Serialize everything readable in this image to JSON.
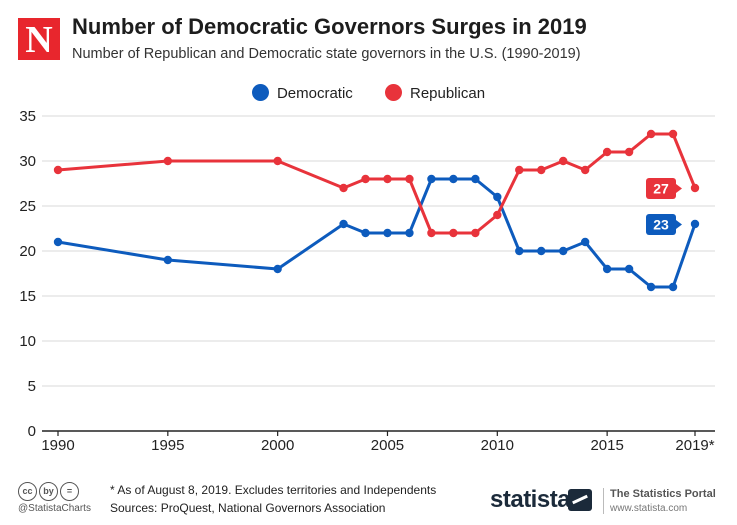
{
  "header": {
    "logo_letter": "N",
    "title": "Number of Democratic Governors Surges in 2019",
    "subtitle": "Number of Republican and Democratic state governors in the U.S. (1990-2019)"
  },
  "footer": {
    "note": "* As of August 8, 2019. Excludes territories and Independents",
    "sources": "Sources: ProQuest, National Governors Association",
    "license_icons": [
      "cc",
      "by",
      "="
    ],
    "handle": "@StatistaCharts",
    "brand": "statista",
    "portal": "The Statistics Portal",
    "portal_url": "www.statista.com"
  },
  "chart_data": {
    "type": "line",
    "title": "Number of Democratic Governors Surges in 2019",
    "xlabel": "",
    "ylabel": "",
    "xlim": [
      1990,
      2019
    ],
    "ylim": [
      0,
      35
    ],
    "yticks": [
      0,
      5,
      10,
      15,
      20,
      25,
      30,
      35
    ],
    "xticks": [
      1990,
      1995,
      2000,
      2005,
      2010,
      2015
    ],
    "xtick_labels": [
      "1990",
      "1995",
      "2000",
      "2005",
      "2010",
      "2015"
    ],
    "last_tick_label": "2019*",
    "grid": "horizontal",
    "legend": "top-center",
    "x": [
      1990,
      1995,
      2000,
      2003,
      2004,
      2005,
      2006,
      2007,
      2008,
      2009,
      2010,
      2011,
      2012,
      2013,
      2014,
      2015,
      2016,
      2017,
      2018,
      2019
    ],
    "series": [
      {
        "name": "Democratic",
        "color": "#0d5bbd",
        "values": [
          21,
          19,
          18,
          23,
          22,
          22,
          22,
          28,
          28,
          28,
          26,
          20,
          20,
          20,
          21,
          18,
          18,
          16,
          16,
          23
        ],
        "end_label": "23"
      },
      {
        "name": "Republican",
        "color": "#e8333b",
        "values": [
          29,
          30,
          30,
          27,
          28,
          28,
          28,
          22,
          22,
          22,
          24,
          29,
          29,
          30,
          29,
          31,
          31,
          33,
          33,
          27
        ],
        "end_label": "27"
      }
    ]
  }
}
